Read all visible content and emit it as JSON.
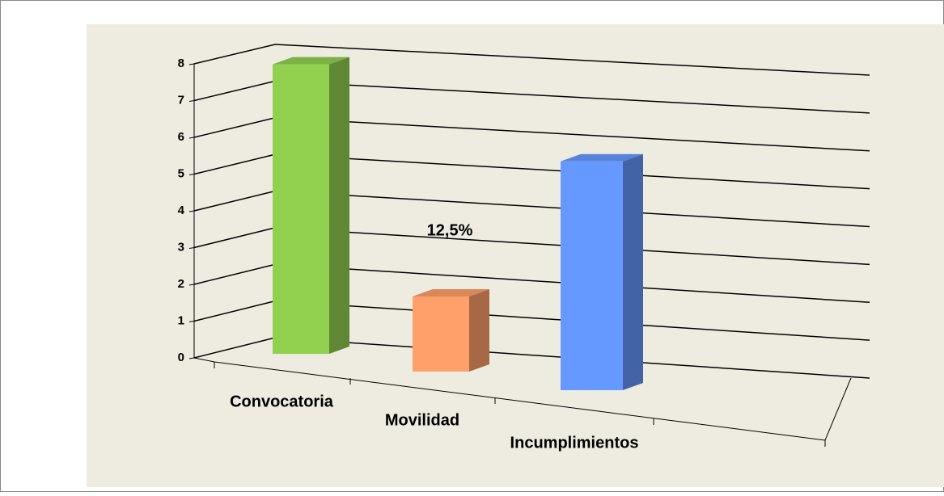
{
  "chart_data": {
    "type": "bar3d",
    "categories": [
      "Convocatoria",
      "Movilidad",
      "Incumplimientos"
    ],
    "values": [
      8,
      2,
      6
    ],
    "colors": [
      "#92d050",
      "#ffa06a",
      "#6699ff"
    ],
    "annotation": "12,5%",
    "ylim": [
      0,
      8
    ],
    "yticks": [
      0,
      1,
      2,
      3,
      4,
      5,
      6,
      7,
      8
    ],
    "grid": true
  }
}
